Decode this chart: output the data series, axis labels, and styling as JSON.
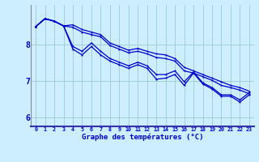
{
  "background_color": "#cceeff",
  "line_color": "#0000cc",
  "grid_color": "#99cccc",
  "hours": [
    0,
    1,
    2,
    3,
    4,
    5,
    6,
    7,
    8,
    9,
    10,
    11,
    12,
    13,
    14,
    15,
    16,
    17,
    18,
    19,
    20,
    21,
    22,
    23
  ],
  "line_top": [
    8.5,
    8.72,
    8.65,
    8.52,
    8.55,
    8.42,
    8.35,
    8.28,
    8.05,
    7.95,
    7.85,
    7.9,
    7.82,
    7.75,
    7.72,
    7.62,
    7.38,
    7.28,
    7.18,
    7.08,
    6.98,
    6.88,
    6.82,
    6.72
  ],
  "line_bottom": [
    8.5,
    8.72,
    8.65,
    8.52,
    7.88,
    7.72,
    7.95,
    7.72,
    7.55,
    7.45,
    7.35,
    7.45,
    7.35,
    7.05,
    7.08,
    7.18,
    6.88,
    7.22,
    6.92,
    6.78,
    6.58,
    6.58,
    6.42,
    6.62
  ],
  "line_mid1": [
    8.5,
    8.72,
    8.65,
    8.52,
    7.95,
    7.82,
    8.05,
    7.82,
    7.62,
    7.52,
    7.42,
    7.52,
    7.42,
    7.18,
    7.18,
    7.28,
    6.98,
    7.25,
    6.95,
    6.82,
    6.62,
    6.62,
    6.48,
    6.68
  ],
  "line_mid2": [
    8.5,
    8.72,
    8.65,
    8.52,
    8.48,
    8.35,
    8.28,
    8.22,
    7.98,
    7.88,
    7.78,
    7.82,
    7.75,
    7.65,
    7.62,
    7.55,
    7.28,
    7.22,
    7.12,
    7.02,
    6.88,
    6.82,
    6.75,
    6.65
  ],
  "xlabel": "Graphe des températures (°C)",
  "ylim": [
    5.75,
    9.1
  ],
  "yticks": [
    6,
    7,
    8
  ],
  "xlim": [
    -0.5,
    23.5
  ]
}
